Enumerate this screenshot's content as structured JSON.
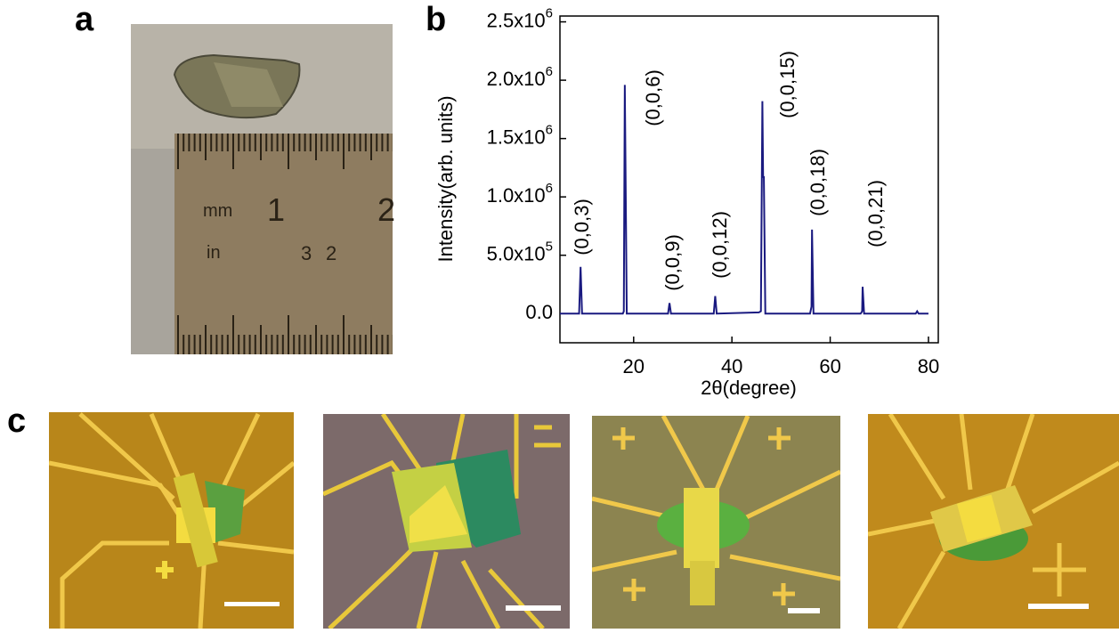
{
  "panels": {
    "a": {
      "label": "a",
      "ruler_labels": [
        "mm",
        "1",
        "2",
        "in",
        "3",
        "2"
      ]
    },
    "b": {
      "label": "b"
    },
    "c": {
      "label": "c"
    }
  },
  "chart_data": {
    "type": "line",
    "xlabel": "2θ(degree)",
    "ylabel": "Intensity(arb. units)",
    "xlim": [
      5,
      82
    ],
    "xticks": [
      20,
      40,
      60,
      80
    ],
    "ylim": [
      -250000,
      2550000
    ],
    "yticks": [
      {
        "value": 0,
        "label": "0.0"
      },
      {
        "value": 500000,
        "label": "5.0x10",
        "exponent": "5"
      },
      {
        "value": 1000000,
        "label": "1.0x10",
        "exponent": "6"
      },
      {
        "value": 1500000,
        "label": "1.5x10",
        "exponent": "6"
      },
      {
        "value": 2000000,
        "label": "2.0x10",
        "exponent": "6"
      },
      {
        "value": 2500000,
        "label": "2.5x10",
        "exponent": "6"
      }
    ],
    "series": [
      {
        "color": "#1a1a80",
        "x": [
          5,
          8.9,
          9.2,
          9.5,
          17.8,
          18.0,
          18.2,
          18.6,
          27.0,
          27.3,
          27.6,
          36.3,
          36.6,
          36.9,
          45.5,
          45.9,
          46.2,
          46.35,
          46.5,
          46.8,
          55.9,
          56.2,
          56.3,
          56.6,
          66.2,
          66.5,
          66.6,
          66.9,
          77.4,
          77.7,
          78.0,
          80
        ],
        "values": [
          0,
          0,
          400000,
          0,
          0,
          20000,
          1960000,
          0,
          0,
          90000,
          0,
          0,
          150000,
          0,
          10000,
          20000,
          1820000,
          1170000,
          1170000,
          0,
          0,
          60000,
          720000,
          0,
          0,
          20000,
          230000,
          0,
          0,
          20000,
          0,
          0
        ]
      }
    ],
    "annotations": [
      "(0,0,3)",
      "(0,0,6)",
      "(0,0,9)",
      "(0,0,12)",
      "(0,0,15)",
      "(0,0,18)",
      "(0,0,21)"
    ]
  }
}
